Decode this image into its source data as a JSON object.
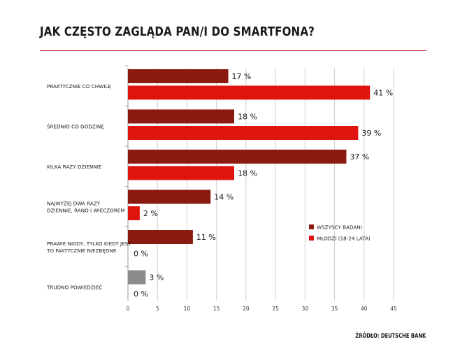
{
  "title": "JAK CZĘSTO ZAGLĄDA PAN/I DO SMARTFONA?",
  "source": "ŹRÓDŁO: DEUTSCHE BANK",
  "colors": {
    "series1": "#8b1a10",
    "series2": "#e0140e",
    "neutral": "#8c8c8c",
    "grid": "#d0d0d0",
    "rule": "#c0262c"
  },
  "chart_data": {
    "type": "bar",
    "orientation": "horizontal",
    "title": "JAK CZĘSTO ZAGLĄDA PAN/I DO SMARTFONA?",
    "xlim": [
      0,
      45
    ],
    "xticks": [
      0,
      5,
      10,
      15,
      20,
      25,
      30,
      35,
      40,
      45
    ],
    "categories": [
      [
        "PRAKTYCZNIE CO CHWILĘ"
      ],
      [
        "ŚREDNIO CO GODZINĘ"
      ],
      [
        "KILKA RAZY DZIENNIE"
      ],
      [
        "NAJWYŻEJ DWA RAZY",
        "DZIENNIE, RANO I WIECZOREM"
      ],
      [
        "PRAWIE NIGDY, TYLKO KIEDY JEST",
        "TO FAKTYCZNIE NIEZBĘDNE"
      ],
      [
        "TRUDNO POWIEDZIEĆ"
      ]
    ],
    "series": [
      {
        "name": "WSZYSCY BADANI",
        "values": [
          17,
          18,
          37,
          14,
          11,
          3
        ],
        "labels": [
          "17 %",
          "18 %",
          "37 %",
          "14 %",
          "11 %",
          "3 %"
        ]
      },
      {
        "name": "MŁODZI (18-24 LATA)",
        "values": [
          41,
          39,
          18,
          2,
          0,
          0
        ],
        "labels": [
          "41 %",
          "39 %",
          "18 %",
          "2 %",
          "0 %",
          "0 %"
        ]
      }
    ],
    "special_colored": {
      "category_index": 5,
      "series_index": 0
    },
    "legend_position": "right"
  }
}
